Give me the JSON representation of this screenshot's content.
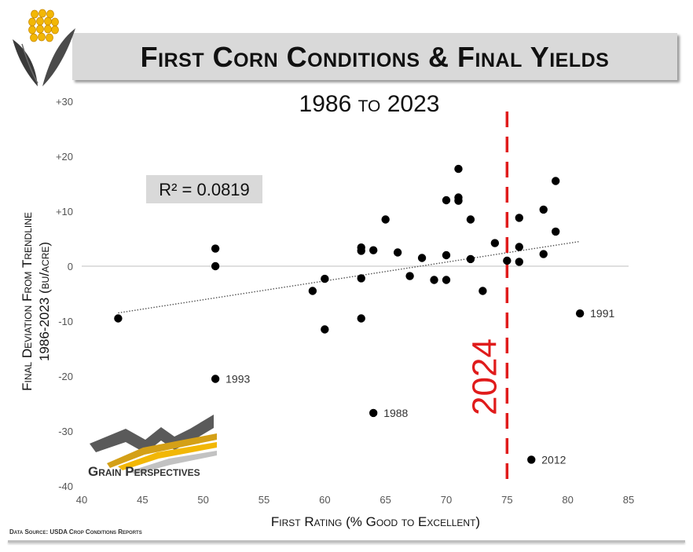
{
  "header": {
    "title": "First Corn Conditions & Final Yields"
  },
  "footer": {
    "source": "Data Source: USDA Crop Conditions Reports"
  },
  "brand": {
    "name": "Grain Perspectives"
  },
  "colors": {
    "accent_red": "#e01b1b",
    "marker": "#000000",
    "gold": "#f2b705"
  },
  "chart_data": {
    "type": "scatter",
    "subtitle": "1986 to 2023",
    "xlabel": "First Rating (% Good to Excellent)",
    "ylabel_line1": "Final Deviation From Trendline",
    "ylabel_line2": "1986-2023 (bu/acre)",
    "xlim": [
      40,
      85
    ],
    "ylim": [
      -40,
      30
    ],
    "x_ticks": [
      "40",
      "45",
      "50",
      "55",
      "60",
      "65",
      "70",
      "75",
      "80",
      "85"
    ],
    "y_ticks": [
      "-40",
      "-30",
      "-20",
      "-10",
      "0",
      "+10",
      "+20",
      "+30"
    ],
    "r_squared": "R² = 0.0819",
    "trendline": {
      "x": [
        43,
        81
      ],
      "y": [
        -8.5,
        4.5
      ]
    },
    "marker_line": {
      "x": 75,
      "label": "2024"
    },
    "points": [
      {
        "x": 43,
        "y": -9.5
      },
      {
        "x": 51,
        "y": 3.2
      },
      {
        "x": 51,
        "y": 0.0
      },
      {
        "x": 51,
        "y": -20.5,
        "label": "1993"
      },
      {
        "x": 59,
        "y": -4.5
      },
      {
        "x": 60,
        "y": -2.3
      },
      {
        "x": 60,
        "y": -11.5
      },
      {
        "x": 63,
        "y": 3.4
      },
      {
        "x": 63,
        "y": 2.8
      },
      {
        "x": 63,
        "y": -2.2
      },
      {
        "x": 63,
        "y": -9.5
      },
      {
        "x": 64,
        "y": 2.9
      },
      {
        "x": 64,
        "y": -26.7,
        "label": "1988"
      },
      {
        "x": 65,
        "y": 8.5
      },
      {
        "x": 66,
        "y": 2.5
      },
      {
        "x": 67,
        "y": -1.8
      },
      {
        "x": 68,
        "y": 1.5
      },
      {
        "x": 69,
        "y": -2.5
      },
      {
        "x": 70,
        "y": 12.0
      },
      {
        "x": 70,
        "y": 2.0
      },
      {
        "x": 70,
        "y": -2.5
      },
      {
        "x": 71,
        "y": 17.7
      },
      {
        "x": 71,
        "y": 12.5
      },
      {
        "x": 71,
        "y": 11.9
      },
      {
        "x": 72,
        "y": 8.5
      },
      {
        "x": 72,
        "y": 1.3
      },
      {
        "x": 73,
        "y": -4.5
      },
      {
        "x": 74,
        "y": 4.2
      },
      {
        "x": 75,
        "y": 1.0
      },
      {
        "x": 76,
        "y": 8.8
      },
      {
        "x": 76,
        "y": 3.5
      },
      {
        "x": 76,
        "y": 0.8
      },
      {
        "x": 77,
        "y": -35.2,
        "label": "2012"
      },
      {
        "x": 78,
        "y": 10.3
      },
      {
        "x": 78,
        "y": 2.2
      },
      {
        "x": 79,
        "y": 15.5
      },
      {
        "x": 79,
        "y": 6.3
      },
      {
        "x": 81,
        "y": -8.6,
        "label": "1991"
      }
    ]
  }
}
